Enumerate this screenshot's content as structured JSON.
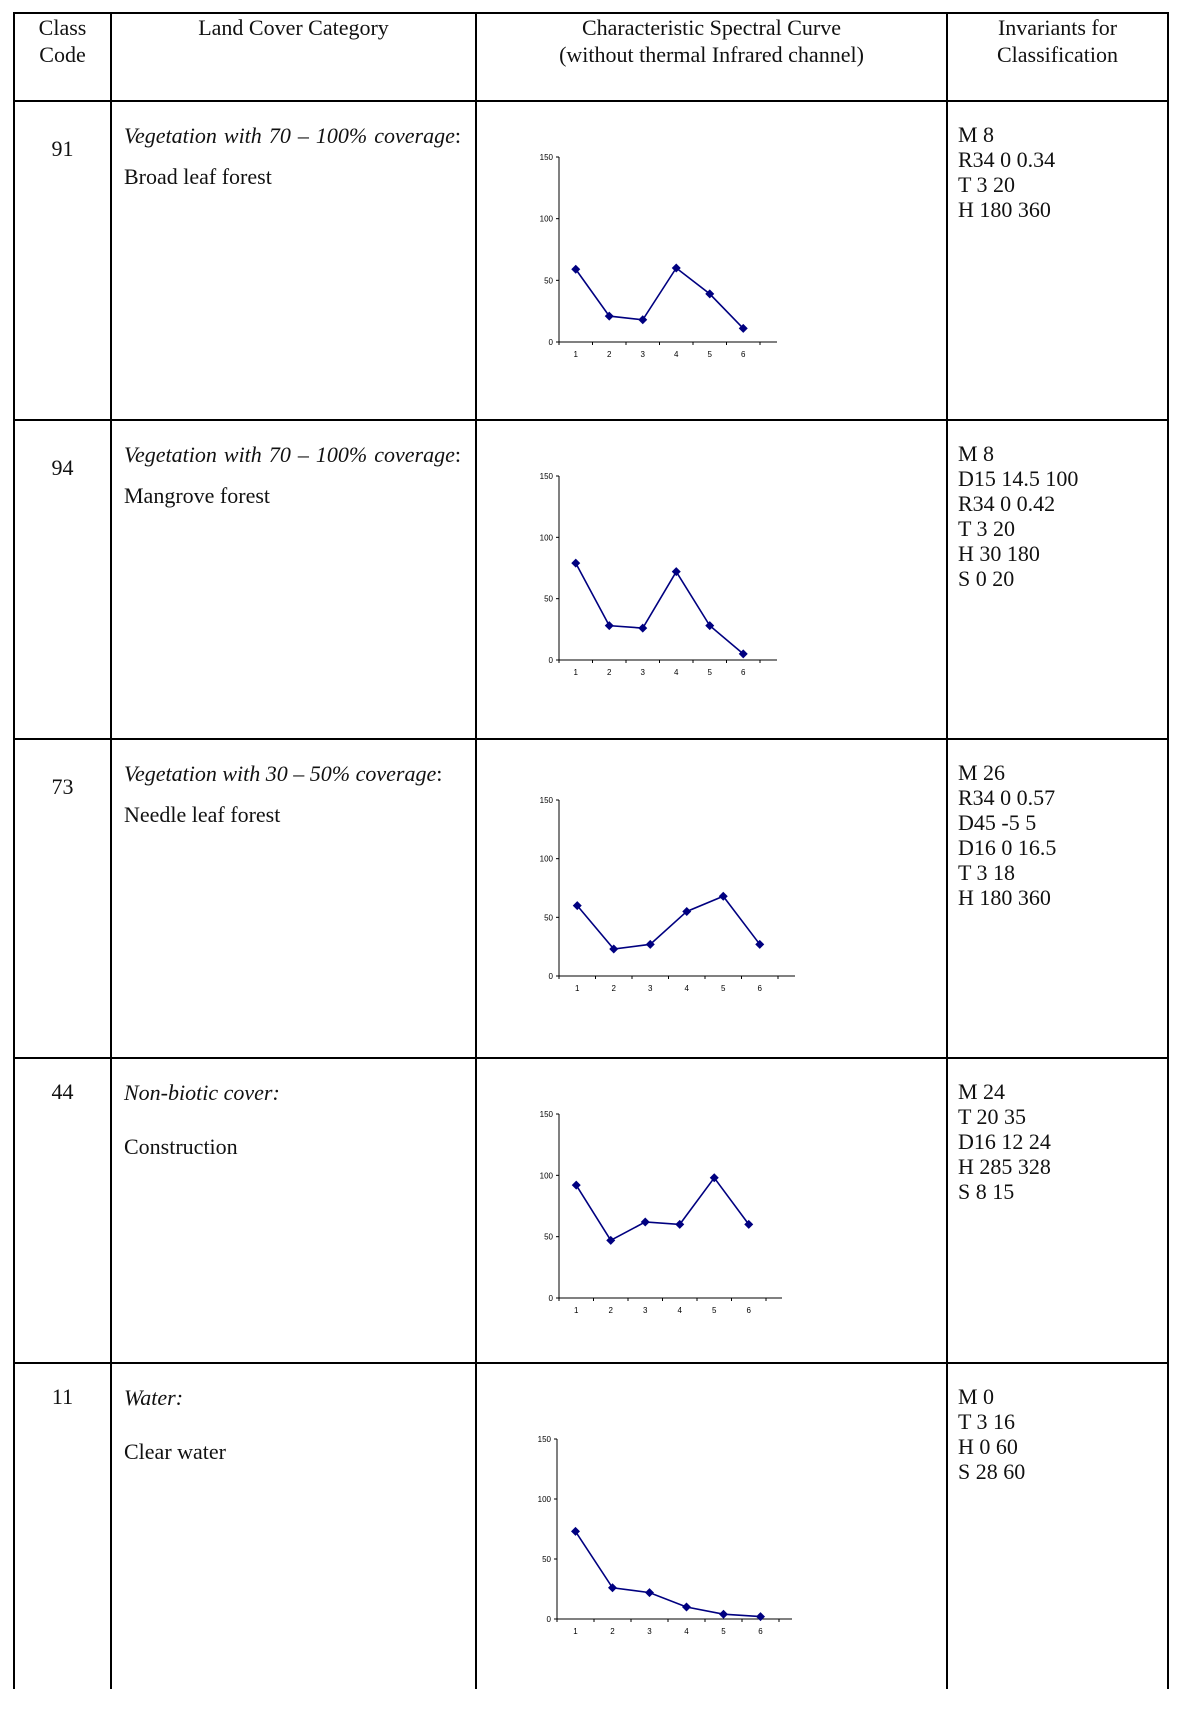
{
  "headers": {
    "code": "Class Code",
    "category": "Land Cover Category",
    "curve_line1": "Characteristic Spectral Curve",
    "curve_line2": "(without thermal Infrared channel)",
    "invariants": "Invariants for Classification"
  },
  "rows": [
    {
      "code": "91",
      "category_italic": "Vegetation with 70 – 100% coverage",
      "category_colon": ":",
      "category_name": "Broad leaf  forest",
      "invariants": [
        "M 8",
        "R34 0 0.34",
        "T 3 20",
        "H 180 360"
      ]
    },
    {
      "code": "94",
      "category_italic": "Vegetation with 70 – 100% coverage",
      "category_colon": ":",
      "category_name": "Mangrove forest",
      "invariants": [
        "M 8",
        "D15 14.5 100",
        "R34 0 0.42",
        "T 3 20",
        "H 30 180",
        "S 0 20"
      ]
    },
    {
      "code": "73",
      "category_italic": "Vegetation with 30 – 50% coverage",
      "category_colon": ":",
      "category_name": "Needle leaf forest",
      "invariants": [
        "M 26",
        "R34 0 0.57",
        "D45 -5 5",
        "D16 0 16.5",
        "T 3 18",
        "H 180 360"
      ]
    },
    {
      "code": "44",
      "category_italic": "Non-biotic cover:",
      "category_colon": "",
      "category_name": "Construction",
      "invariants": [
        "M 24",
        "T 20 35",
        "D16 12 24",
        "H 285 328",
        "S 8 15"
      ]
    },
    {
      "code": "11",
      "category_italic": "Water:",
      "category_colon": "",
      "category_name": "Clear water",
      "invariants": [
        "M 0",
        "T 3 16",
        "H 0 60",
        "S 28 60"
      ]
    }
  ],
  "chart_data": [
    {
      "type": "line",
      "x": [
        1,
        2,
        3,
        4,
        5,
        6
      ],
      "values": [
        59,
        21,
        18,
        60,
        39,
        11
      ],
      "ylim": [
        0,
        150
      ],
      "yticks": [
        "0",
        "50",
        "100",
        "150"
      ],
      "xticks": [
        "1",
        "2",
        "3",
        "4",
        "5",
        "6"
      ],
      "color": "#000080"
    },
    {
      "type": "line",
      "x": [
        1,
        2,
        3,
        4,
        5,
        6
      ],
      "values": [
        79,
        28,
        26,
        72,
        28,
        5
      ],
      "ylim": [
        0,
        150
      ],
      "yticks": [
        "0",
        "50",
        "100",
        "150"
      ],
      "xticks": [
        "1",
        "2",
        "3",
        "4",
        "5",
        "6"
      ],
      "color": "#000080"
    },
    {
      "type": "line",
      "x": [
        1,
        2,
        3,
        4,
        5,
        6
      ],
      "values": [
        60,
        23,
        27,
        55,
        68,
        27
      ],
      "ylim": [
        0,
        150
      ],
      "yticks": [
        "0",
        "50",
        "100",
        "150"
      ],
      "xticks": [
        "1",
        "2",
        "3",
        "4",
        "5",
        "6"
      ],
      "color": "#000080"
    },
    {
      "type": "line",
      "x": [
        1,
        2,
        3,
        4,
        5,
        6
      ],
      "values": [
        92,
        47,
        62,
        60,
        98,
        60
      ],
      "ylim": [
        0,
        150
      ],
      "yticks": [
        "0",
        "50",
        "100",
        "150"
      ],
      "xticks": [
        "1",
        "2",
        "3",
        "4",
        "5",
        "6"
      ],
      "color": "#000080"
    },
    {
      "type": "line",
      "x": [
        1,
        2,
        3,
        4,
        5,
        6
      ],
      "values": [
        73,
        26,
        22,
        10,
        4,
        2
      ],
      "ylim": [
        0,
        150
      ],
      "yticks": [
        "0",
        "50",
        "100",
        "150"
      ],
      "xticks": [
        "1",
        "2",
        "3",
        "4",
        "5",
        "6"
      ],
      "color": "#000080"
    }
  ]
}
